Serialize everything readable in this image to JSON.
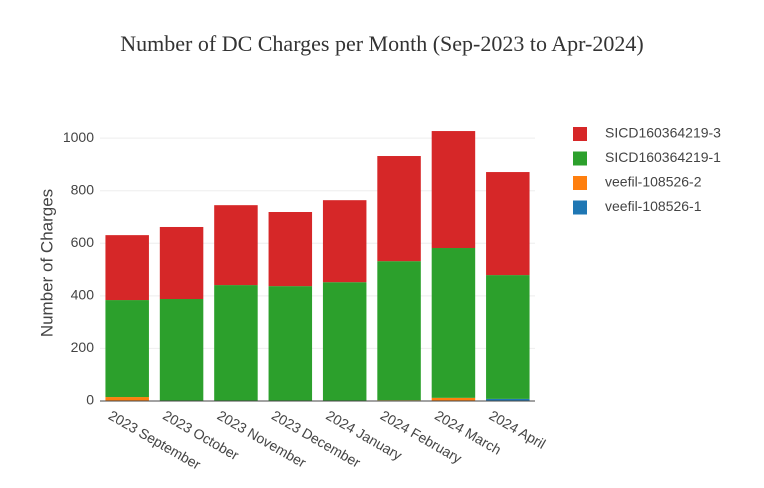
{
  "chart_data": {
    "type": "stacked_bar",
    "title": "Number of DC Charges per Month (Sep-2023 to Apr-2024)",
    "y_label": "Number of Charges",
    "categories": [
      "2023 September",
      "2023 October",
      "2023 November",
      "2023 December",
      "2024 January",
      "2024 February",
      "2024 March",
      "2024 April"
    ],
    "series": [
      {
        "name": "veefil-108526-1",
        "color": "#1f77b4",
        "values": [
          0,
          0,
          0,
          0,
          0,
          0,
          0,
          8
        ]
      },
      {
        "name": "veefil-108526-2",
        "color": "#ff7f0e",
        "values": [
          15,
          0,
          0,
          0,
          0,
          3,
          12,
          0
        ]
      },
      {
        "name": "SICD160364219-1",
        "color": "#2ca02c",
        "values": [
          369,
          388,
          441,
          437,
          452,
          529,
          570,
          471
        ]
      },
      {
        "name": "SICD160364219-3",
        "color": "#d62728",
        "values": [
          247,
          274,
          304,
          282,
          312,
          400,
          445,
          392
        ]
      }
    ],
    "ylim": [
      0,
      1050
    ],
    "yticks": [
      0,
      200,
      400,
      600,
      800,
      1000
    ],
    "grid": true,
    "legend": "right"
  }
}
